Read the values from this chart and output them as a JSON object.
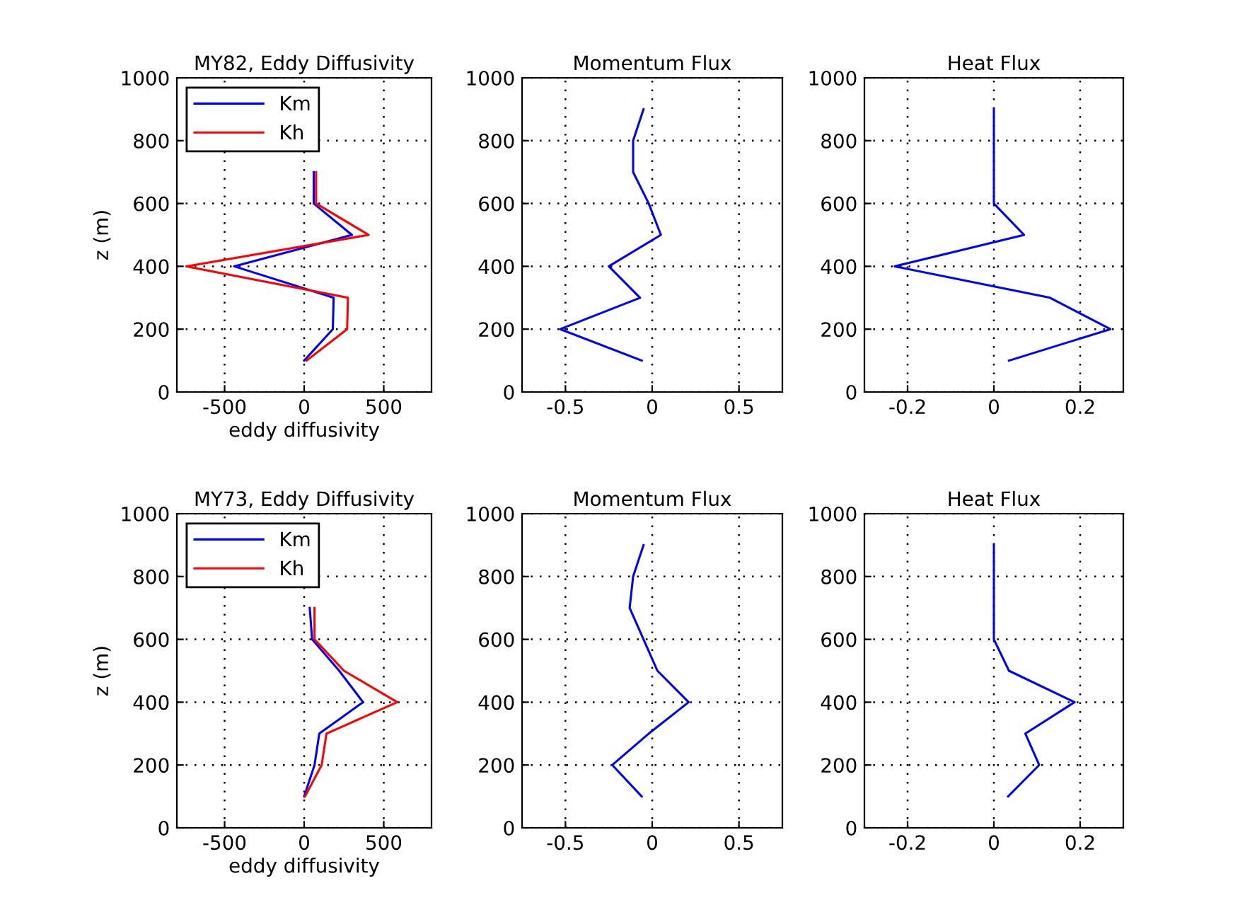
{
  "chart_data": [
    {
      "type": "line",
      "title": "MY82, Eddy Diffusivity",
      "xlabel": "eddy diffusivity",
      "ylabel": "z (m)",
      "xlim": [
        -800,
        800
      ],
      "xticks": [
        -500,
        0,
        500
      ],
      "ylim": [
        0,
        1000
      ],
      "yticks": [
        0,
        200,
        400,
        600,
        800,
        1000
      ],
      "grid": true,
      "legend": "top left",
      "series": [
        {
          "name": "Km",
          "color": "#0000ff",
          "x": [
            0,
            180,
            185,
            -440,
            300,
            60,
            60
          ],
          "values": [
            100,
            200,
            300,
            400,
            500,
            600,
            700
          ]
        },
        {
          "name": "Kh",
          "color": "#ff0000",
          "x": [
            15,
            270,
            275,
            -740,
            405,
            75,
            75
          ],
          "values": [
            100,
            200,
            300,
            400,
            500,
            600,
            700
          ]
        }
      ]
    },
    {
      "type": "line",
      "title": "Momentum Flux",
      "xlim": [
        -0.75,
        0.75
      ],
      "xticks": [
        -0.5,
        0,
        0.5
      ],
      "ylim": [
        0,
        1000
      ],
      "yticks": [
        0,
        200,
        400,
        600,
        800,
        1000
      ],
      "grid": true,
      "series": [
        {
          "color": "#0000ff",
          "x": [
            -0.06,
            -0.53,
            -0.07,
            -0.25,
            0.05,
            -0.02,
            -0.11,
            -0.11,
            -0.05
          ],
          "values": [
            100,
            200,
            300,
            400,
            500,
            600,
            700,
            800,
            900
          ]
        }
      ]
    },
    {
      "type": "line",
      "title": "Heat Flux",
      "xlim": [
        -0.3,
        0.3
      ],
      "xticks": [
        -0.2,
        0,
        0.2
      ],
      "ylim": [
        0,
        1000
      ],
      "yticks": [
        0,
        200,
        400,
        600,
        800,
        1000
      ],
      "grid": true,
      "series": [
        {
          "color": "#0000ff",
          "x": [
            0.035,
            0.27,
            0.13,
            -0.23,
            0.07,
            0,
            0,
            0,
            0
          ],
          "values": [
            100,
            200,
            300,
            400,
            500,
            600,
            700,
            800,
            900
          ]
        }
      ]
    },
    {
      "type": "line",
      "title": "MY73, Eddy Diffusivity",
      "xlabel": "eddy diffusivity",
      "ylabel": "z (m)",
      "xlim": [
        -800,
        800
      ],
      "xticks": [
        -500,
        0,
        500
      ],
      "ylim": [
        0,
        1000
      ],
      "yticks": [
        0,
        200,
        400,
        600,
        800,
        1000
      ],
      "grid": true,
      "legend": "top left",
      "series": [
        {
          "name": "Km",
          "color": "#0000ff",
          "x": [
            0,
            65,
            95,
            370,
            220,
            50,
            35
          ],
          "values": [
            100,
            200,
            300,
            400,
            500,
            600,
            700
          ]
        },
        {
          "name": "Kh",
          "color": "#ff0000",
          "x": [
            5,
            110,
            140,
            585,
            250,
            65,
            65
          ],
          "values": [
            100,
            200,
            300,
            400,
            500,
            600,
            700
          ]
        }
      ]
    },
    {
      "type": "line",
      "title": "Momentum Flux",
      "xlim": [
        -0.75,
        0.75
      ],
      "xticks": [
        -0.5,
        0,
        0.5
      ],
      "ylim": [
        0,
        1000
      ],
      "yticks": [
        0,
        200,
        400,
        600,
        800,
        1000
      ],
      "grid": true,
      "series": [
        {
          "color": "#0000ff",
          "x": [
            -0.06,
            -0.23,
            -0.02,
            0.21,
            0.03,
            -0.05,
            -0.13,
            -0.11,
            -0.05
          ],
          "values": [
            100,
            200,
            300,
            400,
            500,
            600,
            700,
            800,
            900
          ]
        }
      ]
    },
    {
      "type": "line",
      "title": "Heat Flux",
      "xlim": [
        -0.3,
        0.3
      ],
      "xticks": [
        -0.2,
        0,
        0.2
      ],
      "ylim": [
        0,
        1000
      ],
      "yticks": [
        0,
        200,
        400,
        600,
        800,
        1000
      ],
      "grid": true,
      "series": [
        {
          "color": "#0000ff",
          "x": [
            0.033,
            0.105,
            0.073,
            0.187,
            0.035,
            0,
            0,
            0,
            0
          ],
          "values": [
            100,
            200,
            300,
            400,
            500,
            600,
            700,
            800,
            900
          ]
        }
      ]
    }
  ]
}
